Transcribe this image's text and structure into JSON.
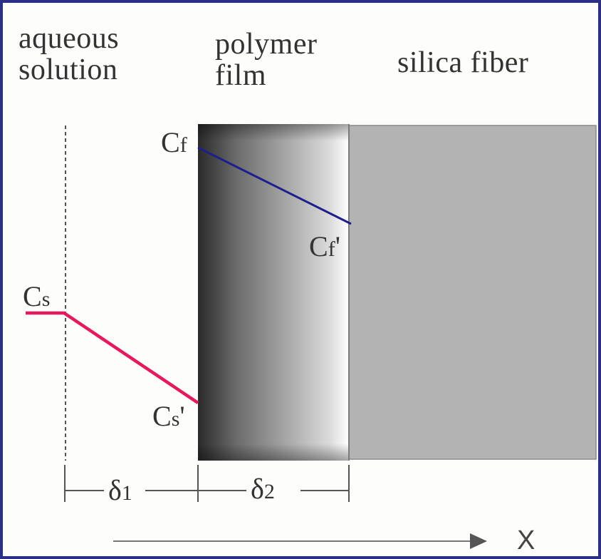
{
  "regions": {
    "aqueous": [
      "aqueous",
      "solution"
    ],
    "polymer": [
      "polymer",
      "film"
    ],
    "silica": "silica fiber"
  },
  "concentrations": {
    "cf": {
      "base": "C",
      "sub": "f",
      "prime": ""
    },
    "cf_prime": {
      "base": "C",
      "sub": "f",
      "prime": "'"
    },
    "cs": {
      "base": "C",
      "sub": "s",
      "prime": ""
    },
    "cs_prime": {
      "base": "C",
      "sub": "s",
      "prime": "'"
    }
  },
  "thickness": {
    "d1": {
      "base": "δ",
      "sub": "1"
    },
    "d2": {
      "base": "δ",
      "sub": "2"
    }
  },
  "axis": {
    "label": "X"
  },
  "colors": {
    "frame": "#2b2f86",
    "aqueous_line": "#e8185e",
    "polymer_line": "#1d1f8c",
    "silica_fill": "#b3b3b3",
    "polymer_dark": "#2a2a2a",
    "polymer_light": "#ffffff"
  }
}
